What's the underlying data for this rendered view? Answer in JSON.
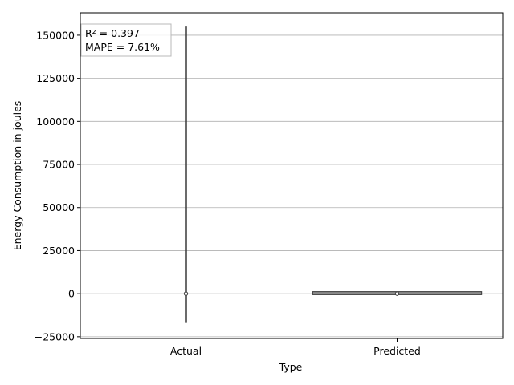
{
  "chart_data": {
    "type": "violin",
    "title": "",
    "xlabel": "Type",
    "ylabel": "Energy Consumption in joules",
    "categories": [
      "Actual",
      "Predicted"
    ],
    "ylim": [
      -26000,
      163000
    ],
    "yticks": [
      -25000,
      0,
      25000,
      50000,
      75000,
      100000,
      125000,
      150000
    ],
    "ytick_labels": [
      "−25000",
      "0",
      "25000",
      "50000",
      "75000",
      "100000",
      "125000",
      "150000"
    ],
    "grid": "y",
    "series": [
      {
        "category": "Actual",
        "min": -17000,
        "max": 155000,
        "median": 0,
        "half_width_fraction": 0.0
      },
      {
        "category": "Predicted",
        "min": -300,
        "max": 900,
        "median": 0,
        "half_width_fraction": 0.4
      }
    ],
    "annotation": {
      "lines": [
        "R² = 0.397",
        "MAPE = 7.61%"
      ],
      "placement": "top-left"
    },
    "colors": {
      "violin_fill": "#8c8c8c",
      "line": "#3a3a3a",
      "grid": "#b0b0b0",
      "axes": "#000000"
    }
  }
}
